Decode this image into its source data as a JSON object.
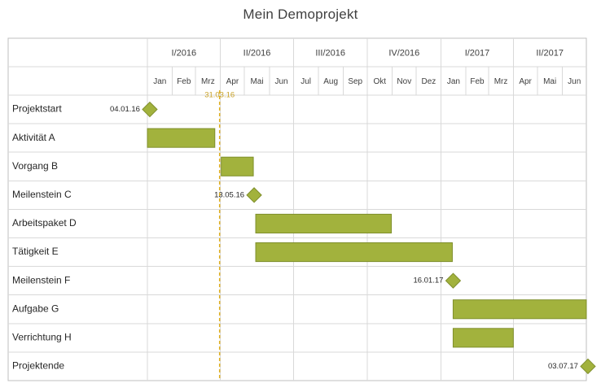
{
  "chart_data": {
    "type": "gantt",
    "title": "Mein Demoprojekt",
    "quarters": [
      "I/2016",
      "II/2016",
      "III/2016",
      "IV/2016",
      "I/2017",
      "II/2017"
    ],
    "months": [
      "Jan",
      "Feb",
      "Mrz",
      "Apr",
      "Mai",
      "Jun",
      "Jul",
      "Aug",
      "Sep",
      "Okt",
      "Nov",
      "Dez",
      "Jan",
      "Feb",
      "Mrz",
      "Apr",
      "Mai",
      "Jun"
    ],
    "range": [
      "2016-01-01",
      "2017-07-01"
    ],
    "today": {
      "date": "2016-03-31",
      "label": "31.03.16"
    },
    "tasks": [
      {
        "name": "Projektstart",
        "type": "milestone",
        "date": "2016-01-04",
        "label": "04.01.16"
      },
      {
        "name": "Aktivität A",
        "type": "task",
        "start": "2016-01-01",
        "end": "2016-03-25"
      },
      {
        "name": "Vorgang B",
        "type": "task",
        "start": "2016-04-02",
        "end": "2016-05-12"
      },
      {
        "name": "Meilenstein C",
        "type": "milestone",
        "date": "2016-05-13",
        "label": "13.05.16"
      },
      {
        "name": "Arbeitspaket D",
        "type": "task",
        "start": "2016-05-15",
        "end": "2016-10-31"
      },
      {
        "name": "Tätigkeit E",
        "type": "task",
        "start": "2016-05-15",
        "end": "2017-01-15"
      },
      {
        "name": "Meilenstein F",
        "type": "milestone",
        "date": "2017-01-16",
        "label": "16.01.17"
      },
      {
        "name": "Aufgabe G",
        "type": "task",
        "start": "2017-01-16",
        "end": "2017-07-01"
      },
      {
        "name": "Verrichtung H",
        "type": "task",
        "start": "2017-01-16",
        "end": "2017-04-01"
      },
      {
        "name": "Projektende",
        "type": "milestone",
        "date": "2017-07-03",
        "label": "03.07.17"
      }
    ],
    "colors": {
      "bar": "#a2b23d",
      "bar_border": "#7f8f2c",
      "today": "#e0b020",
      "grid": "#d9d9d9"
    }
  }
}
